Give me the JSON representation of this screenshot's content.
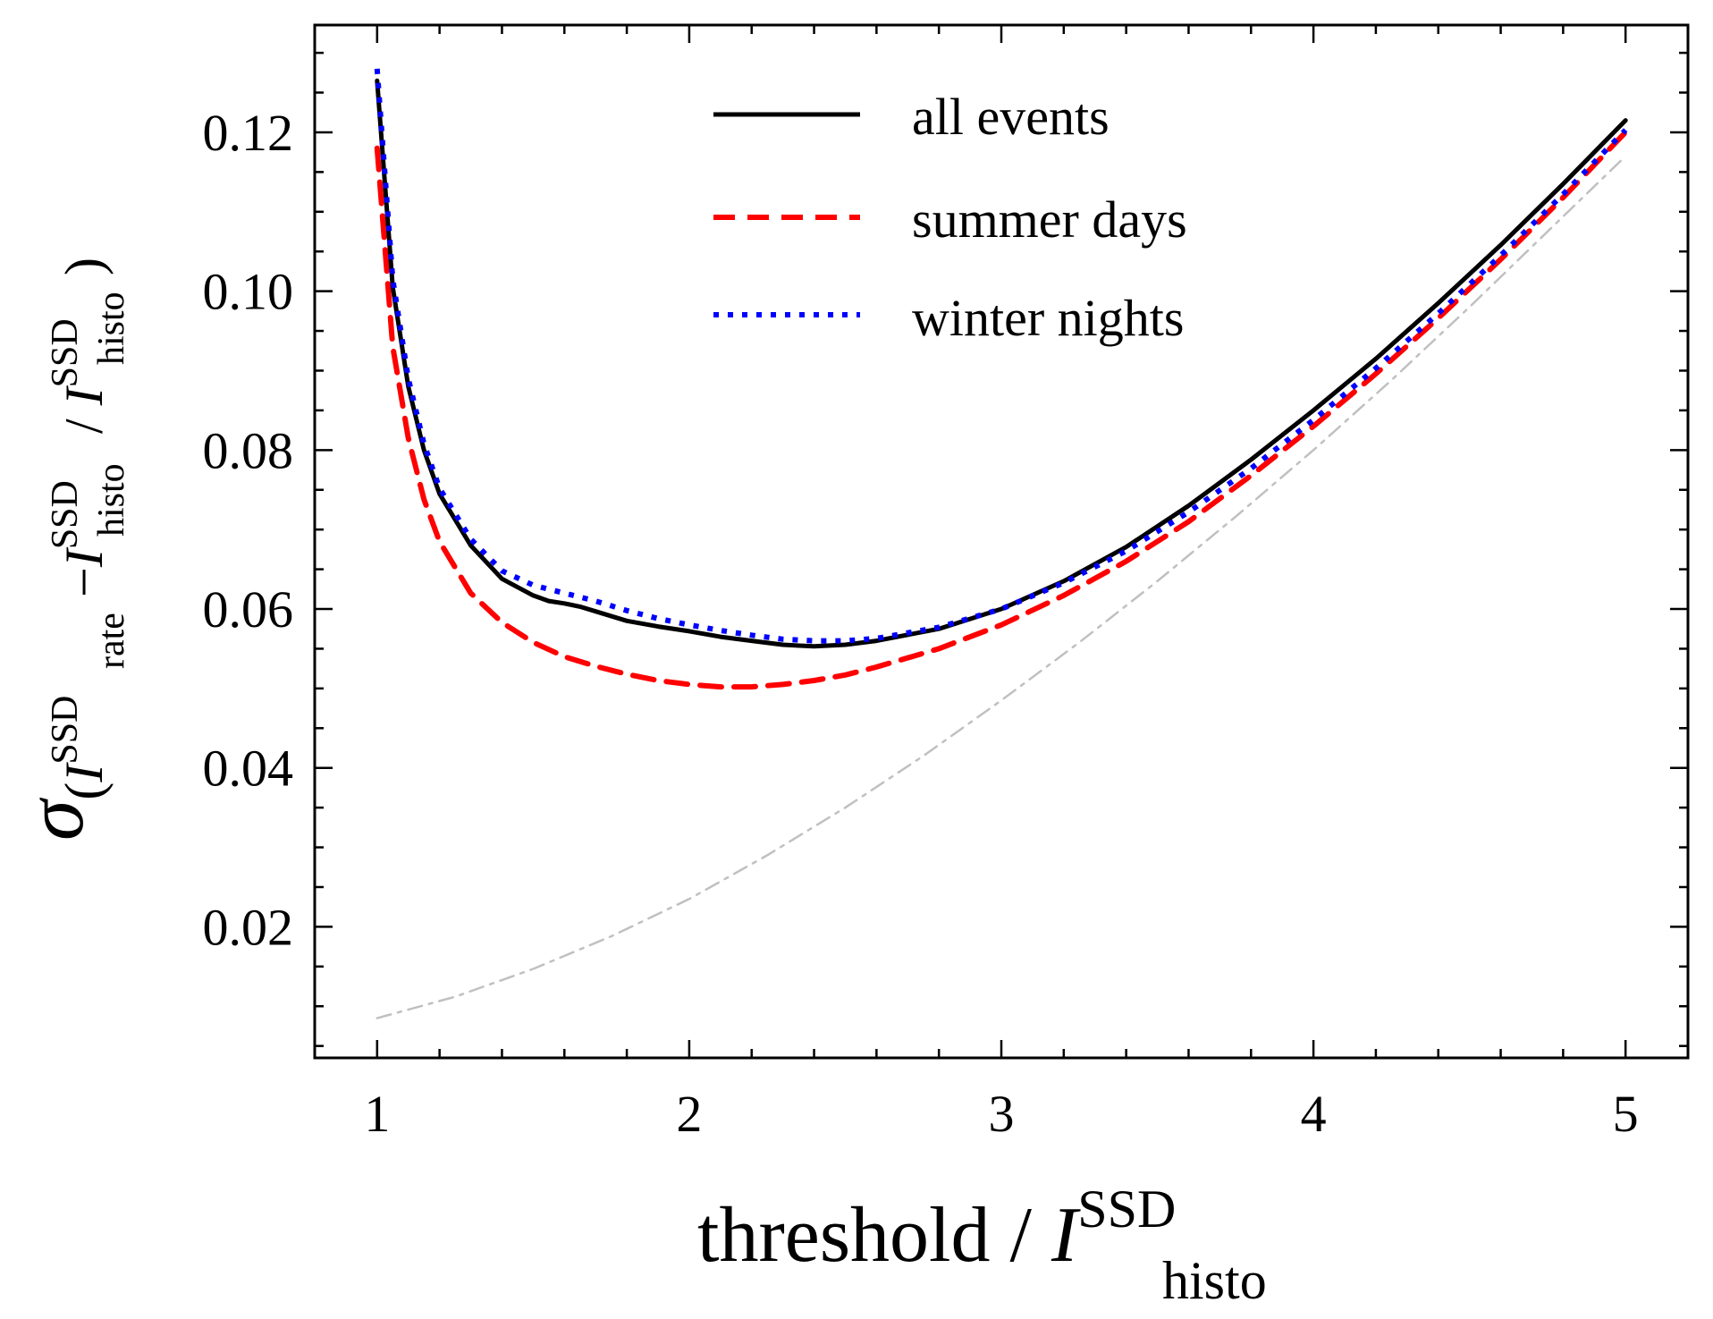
{
  "chart_data": {
    "type": "line",
    "title": "",
    "xlabel": {
      "main": "threshold / ",
      "symbol": "I",
      "sup": "SSD",
      "sub": "histo"
    },
    "ylabel": {
      "sigma": "σ",
      "open": "(",
      "symbol1": "I",
      "sup1": "SSD",
      "sub1": "rate",
      "minus": "−",
      "symbol2": "I",
      "sup2": "SSD",
      "sub2": "histo",
      "slash": " / ",
      "symbol3": "I",
      "sup3": "SSD",
      "sub3": "histo",
      "close": ")"
    },
    "xlim": [
      0.8,
      5.2
    ],
    "ylim": [
      0.0035,
      0.1335
    ],
    "xticks": [
      1,
      2,
      3,
      4,
      5
    ],
    "xtick_labels": [
      "1",
      "2",
      "3",
      "4",
      "5"
    ],
    "yticks": [
      0.02,
      0.04,
      0.06,
      0.08,
      0.1,
      0.12
    ],
    "ytick_labels": [
      "0.02",
      "0.04",
      "0.06",
      "0.08",
      "0.10",
      "0.12"
    ],
    "x_minor_step": 0.2,
    "y_minor_step": 0.005,
    "grid": false,
    "legend_position": "top-center",
    "series": [
      {
        "name": "all events",
        "color": "#000000",
        "style": "solid",
        "x": [
          1.0,
          1.05,
          1.1,
          1.15,
          1.2,
          1.3,
          1.4,
          1.5,
          1.55,
          1.6,
          1.65,
          1.7,
          1.8,
          1.9,
          2.0,
          2.1,
          2.2,
          2.3,
          2.4,
          2.5,
          2.6,
          2.8,
          3.0,
          3.2,
          3.4,
          3.6,
          3.8,
          4.0,
          4.2,
          4.4,
          4.6,
          4.8,
          5.0
        ],
        "y": [
          0.1265,
          0.1005,
          0.088,
          0.08,
          0.0745,
          0.068,
          0.0638,
          0.0617,
          0.061,
          0.0607,
          0.0603,
          0.0597,
          0.0585,
          0.0578,
          0.0572,
          0.0565,
          0.056,
          0.0555,
          0.0553,
          0.0555,
          0.056,
          0.0575,
          0.06,
          0.0635,
          0.0678,
          0.073,
          0.0788,
          0.085,
          0.0915,
          0.0985,
          0.1058,
          0.1135,
          0.1215
        ]
      },
      {
        "name": "summer days",
        "color": "#ff0000",
        "style": "dashed",
        "x": [
          1.0,
          1.05,
          1.1,
          1.15,
          1.2,
          1.3,
          1.4,
          1.5,
          1.6,
          1.7,
          1.8,
          1.9,
          2.0,
          2.1,
          2.2,
          2.3,
          2.4,
          2.5,
          2.6,
          2.8,
          3.0,
          3.2,
          3.4,
          3.6,
          3.8,
          4.0,
          4.2,
          4.4,
          4.6,
          4.8,
          5.0
        ],
        "y": [
          0.118,
          0.093,
          0.0815,
          0.0738,
          0.0685,
          0.062,
          0.0583,
          0.0558,
          0.054,
          0.0528,
          0.0518,
          0.051,
          0.0505,
          0.0502,
          0.0502,
          0.0505,
          0.051,
          0.0517,
          0.0527,
          0.055,
          0.058,
          0.0617,
          0.066,
          0.071,
          0.0768,
          0.083,
          0.0896,
          0.0966,
          0.104,
          0.1118,
          0.12
        ]
      },
      {
        "name": "winter nights",
        "color": "#0000ff",
        "style": "dotted",
        "x": [
          1.0,
          1.05,
          1.1,
          1.15,
          1.2,
          1.3,
          1.4,
          1.5,
          1.6,
          1.7,
          1.8,
          1.9,
          2.0,
          2.1,
          2.2,
          2.3,
          2.4,
          2.5,
          2.6,
          2.8,
          3.0,
          3.2,
          3.4,
          3.6,
          3.8,
          4.0,
          4.2,
          4.4,
          4.6,
          4.8,
          5.0
        ],
        "y": [
          0.128,
          0.1015,
          0.089,
          0.0808,
          0.0752,
          0.0688,
          0.0648,
          0.063,
          0.062,
          0.061,
          0.0598,
          0.0588,
          0.058,
          0.0573,
          0.0567,
          0.0562,
          0.056,
          0.056,
          0.0563,
          0.0577,
          0.06,
          0.0633,
          0.0673,
          0.0722,
          0.0777,
          0.0838,
          0.0903,
          0.0972,
          0.1045,
          0.1122,
          0.1203
        ]
      },
      {
        "color": "#c0c0c0",
        "style": "dashdot",
        "x": [
          1.0,
          1.25,
          1.5,
          1.75,
          2.0,
          2.25,
          2.5,
          2.75,
          3.0,
          3.25,
          3.5,
          3.75,
          4.0,
          4.25,
          4.5,
          4.75,
          5.0
        ],
        "y": [
          0.0085,
          0.0112,
          0.0147,
          0.0188,
          0.0235,
          0.029,
          0.035,
          0.0415,
          0.0485,
          0.0558,
          0.0635,
          0.0716,
          0.08,
          0.0888,
          0.098,
          0.1075,
          0.117
        ]
      }
    ]
  }
}
